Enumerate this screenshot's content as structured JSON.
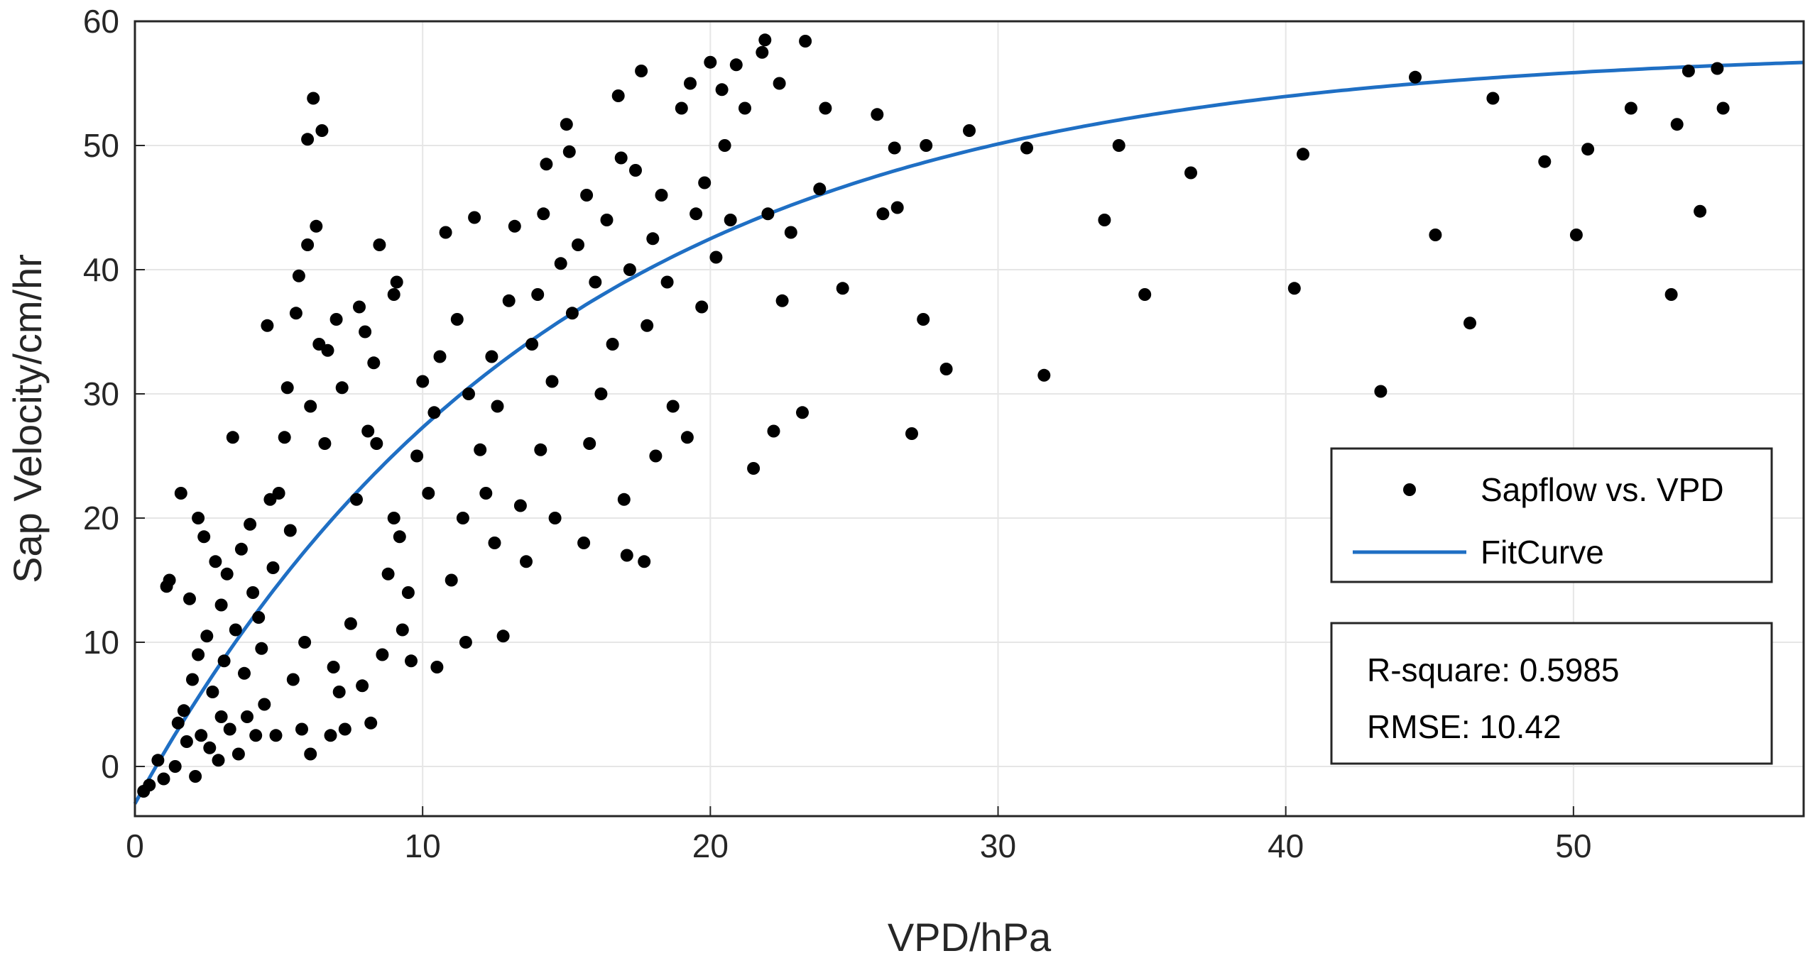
{
  "chart_data": {
    "type": "scatter",
    "xlabel": "VPD/hPa",
    "ylabel": "Sap Velocity/cm/hr",
    "xlim": [
      0,
      58
    ],
    "ylim": [
      -4,
      60
    ],
    "xticks": [
      0,
      10,
      20,
      30,
      40,
      50
    ],
    "yticks": [
      0,
      10,
      20,
      30,
      40,
      50,
      60
    ],
    "grid": true,
    "legend_position": "right",
    "series": [
      {
        "name": "Sapflow vs. VPD",
        "kind": "scatter",
        "color": "#000000",
        "points": [
          [
            0.3,
            -2
          ],
          [
            0.5,
            -1.5
          ],
          [
            0.8,
            0.5
          ],
          [
            1.0,
            -1
          ],
          [
            1.1,
            14.5
          ],
          [
            1.2,
            15
          ],
          [
            1.4,
            0
          ],
          [
            1.5,
            3.5
          ],
          [
            1.6,
            22
          ],
          [
            1.7,
            4.5
          ],
          [
            1.8,
            2
          ],
          [
            1.9,
            13.5
          ],
          [
            2.0,
            7
          ],
          [
            2.1,
            -0.8
          ],
          [
            2.2,
            20
          ],
          [
            2.2,
            9
          ],
          [
            2.3,
            2.5
          ],
          [
            2.4,
            18.5
          ],
          [
            2.5,
            10.5
          ],
          [
            2.6,
            1.5
          ],
          [
            2.7,
            6
          ],
          [
            2.8,
            16.5
          ],
          [
            2.9,
            0.5
          ],
          [
            3.0,
            13
          ],
          [
            3.0,
            4
          ],
          [
            3.1,
            8.5
          ],
          [
            3.2,
            15.5
          ],
          [
            3.3,
            3
          ],
          [
            3.4,
            26.5
          ],
          [
            3.5,
            11
          ],
          [
            3.6,
            1
          ],
          [
            3.7,
            17.5
          ],
          [
            3.8,
            7.5
          ],
          [
            3.9,
            4
          ],
          [
            4.0,
            19.5
          ],
          [
            4.1,
            14
          ],
          [
            4.2,
            2.5
          ],
          [
            4.3,
            12
          ],
          [
            4.4,
            9.5
          ],
          [
            4.5,
            5
          ],
          [
            4.6,
            35.5
          ],
          [
            4.7,
            21.5
          ],
          [
            4.8,
            16
          ],
          [
            4.9,
            2.5
          ],
          [
            5.0,
            22
          ],
          [
            5.2,
            26.5
          ],
          [
            5.3,
            30.5
          ],
          [
            5.4,
            19
          ],
          [
            5.5,
            7
          ],
          [
            5.6,
            36.5
          ],
          [
            5.7,
            39.5
          ],
          [
            5.8,
            3
          ],
          [
            5.9,
            10
          ],
          [
            6.0,
            42
          ],
          [
            6.0,
            50.5
          ],
          [
            6.1,
            29
          ],
          [
            6.1,
            1
          ],
          [
            6.2,
            53.8
          ],
          [
            6.3,
            43.5
          ],
          [
            6.4,
            34
          ],
          [
            6.5,
            51.2
          ],
          [
            6.6,
            26
          ],
          [
            6.7,
            33.5
          ],
          [
            6.8,
            2.5
          ],
          [
            6.9,
            8
          ],
          [
            7.0,
            36
          ],
          [
            7.1,
            6
          ],
          [
            7.2,
            30.5
          ],
          [
            7.3,
            3
          ],
          [
            7.5,
            11.5
          ],
          [
            7.7,
            21.5
          ],
          [
            7.8,
            37
          ],
          [
            7.9,
            6.5
          ],
          [
            8.0,
            35
          ],
          [
            8.1,
            27
          ],
          [
            8.2,
            3.5
          ],
          [
            8.3,
            32.5
          ],
          [
            8.4,
            26
          ],
          [
            8.5,
            42
          ],
          [
            8.6,
            9
          ],
          [
            8.8,
            15.5
          ],
          [
            9.0,
            38
          ],
          [
            9.0,
            20
          ],
          [
            9.1,
            39
          ],
          [
            9.2,
            18.5
          ],
          [
            9.3,
            11
          ],
          [
            9.5,
            14
          ],
          [
            9.6,
            8.5
          ],
          [
            9.8,
            25
          ],
          [
            10.0,
            31
          ],
          [
            10.2,
            22
          ],
          [
            10.4,
            28.5
          ],
          [
            10.5,
            8
          ],
          [
            10.6,
            33
          ],
          [
            10.8,
            43
          ],
          [
            11.0,
            15
          ],
          [
            11.2,
            36
          ],
          [
            11.4,
            20
          ],
          [
            11.5,
            10
          ],
          [
            11.6,
            30
          ],
          [
            11.8,
            44.2
          ],
          [
            12.0,
            25.5
          ],
          [
            12.2,
            22
          ],
          [
            12.4,
            33
          ],
          [
            12.5,
            18
          ],
          [
            12.6,
            29
          ],
          [
            12.8,
            10.5
          ],
          [
            13.0,
            37.5
          ],
          [
            13.2,
            43.5
          ],
          [
            13.4,
            21
          ],
          [
            13.6,
            16.5
          ],
          [
            13.8,
            34
          ],
          [
            14.0,
            38
          ],
          [
            14.1,
            25.5
          ],
          [
            14.2,
            44.5
          ],
          [
            14.3,
            48.5
          ],
          [
            14.5,
            31
          ],
          [
            14.6,
            20
          ],
          [
            14.8,
            40.5
          ],
          [
            15.0,
            51.7
          ],
          [
            15.1,
            49.5
          ],
          [
            15.2,
            36.5
          ],
          [
            15.4,
            42
          ],
          [
            15.6,
            18
          ],
          [
            15.7,
            46
          ],
          [
            15.8,
            26
          ],
          [
            16.0,
            39
          ],
          [
            16.2,
            30
          ],
          [
            16.4,
            44
          ],
          [
            16.6,
            34
          ],
          [
            16.8,
            54
          ],
          [
            16.9,
            49
          ],
          [
            17.0,
            21.5
          ],
          [
            17.1,
            17
          ],
          [
            17.2,
            40
          ],
          [
            17.4,
            48
          ],
          [
            17.6,
            56
          ],
          [
            17.7,
            16.5
          ],
          [
            17.8,
            35.5
          ],
          [
            18.0,
            42.5
          ],
          [
            18.1,
            25
          ],
          [
            18.3,
            46
          ],
          [
            18.5,
            39
          ],
          [
            18.7,
            29
          ],
          [
            19.0,
            53
          ],
          [
            19.2,
            26.5
          ],
          [
            19.3,
            55
          ],
          [
            19.5,
            44.5
          ],
          [
            19.7,
            37
          ],
          [
            19.8,
            47
          ],
          [
            20.0,
            56.7
          ],
          [
            20.2,
            41
          ],
          [
            20.4,
            54.5
          ],
          [
            20.5,
            50
          ],
          [
            20.7,
            44
          ],
          [
            20.9,
            56.5
          ],
          [
            21.2,
            53
          ],
          [
            21.5,
            24
          ],
          [
            21.8,
            57.5
          ],
          [
            21.9,
            58.5
          ],
          [
            22.0,
            44.5
          ],
          [
            22.2,
            27
          ],
          [
            22.4,
            55
          ],
          [
            22.5,
            37.5
          ],
          [
            22.8,
            43
          ],
          [
            23.2,
            28.5
          ],
          [
            23.3,
            58.4
          ],
          [
            23.8,
            46.5
          ],
          [
            24.0,
            53
          ],
          [
            24.6,
            38.5
          ],
          [
            25.8,
            52.5
          ],
          [
            26.0,
            44.5
          ],
          [
            26.4,
            49.8
          ],
          [
            26.5,
            45
          ],
          [
            27.0,
            26.8
          ],
          [
            27.4,
            36
          ],
          [
            27.5,
            50
          ],
          [
            28.2,
            32
          ],
          [
            29.0,
            51.2
          ],
          [
            31.0,
            49.8
          ],
          [
            31.6,
            31.5
          ],
          [
            33.7,
            44
          ],
          [
            34.2,
            50
          ],
          [
            35.1,
            38
          ],
          [
            36.7,
            47.8
          ],
          [
            40.3,
            38.5
          ],
          [
            40.6,
            49.3
          ],
          [
            43.3,
            30.2
          ],
          [
            44.5,
            55.5
          ],
          [
            45.2,
            42.8
          ],
          [
            46.4,
            35.7
          ],
          [
            47.2,
            53.8
          ],
          [
            49.0,
            48.7
          ],
          [
            50.1,
            42.8
          ],
          [
            50.5,
            49.7
          ],
          [
            52.0,
            53
          ],
          [
            53.4,
            38
          ],
          [
            53.6,
            51.7
          ],
          [
            54.0,
            56
          ],
          [
            54.4,
            44.7
          ],
          [
            55.0,
            56.2
          ],
          [
            55.2,
            53
          ]
        ]
      },
      {
        "name": "FitCurve",
        "kind": "line",
        "color": "#1f6fc4",
        "model": "a*(1-exp(-x/b))+c",
        "params": {
          "a": 60.8,
          "b": 14.5,
          "c": -3.0
        }
      }
    ],
    "annotations": [
      "R-square: 0.5985",
      "RMSE: 10.42"
    ]
  }
}
